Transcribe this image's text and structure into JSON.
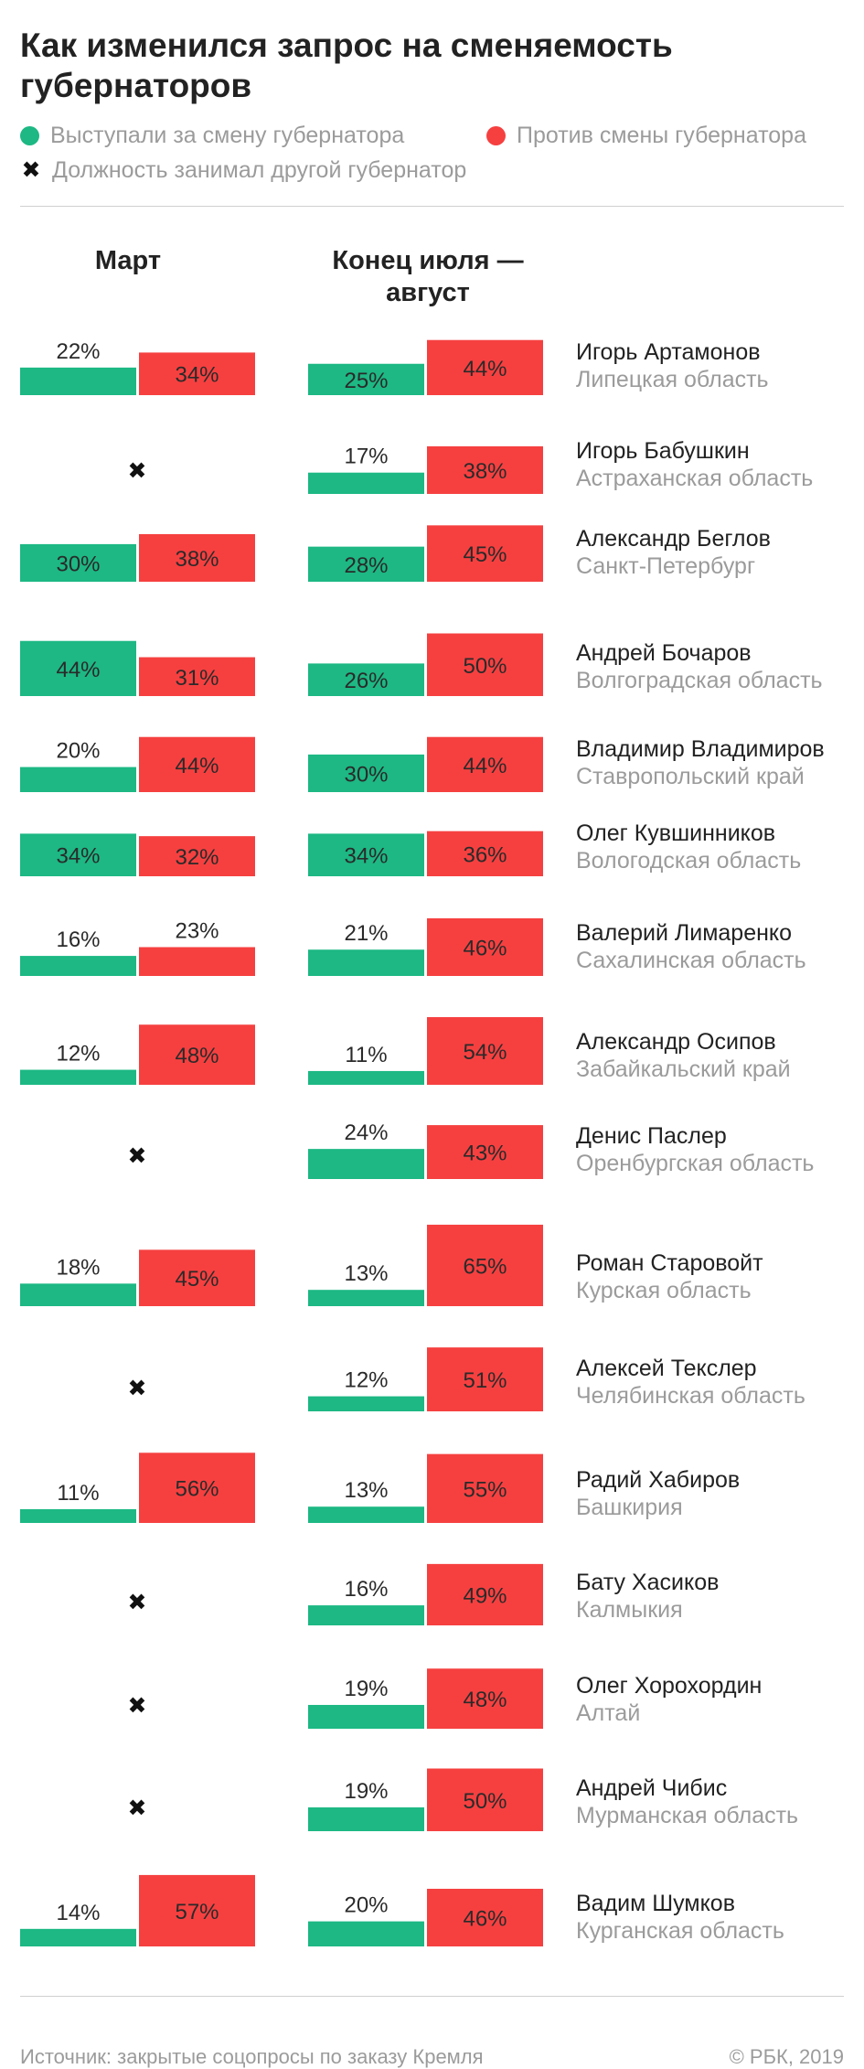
{
  "title": "Как изменился запрос на сменяемость губернаторов",
  "legend": [
    {
      "label": "Выступали за смену губернатора",
      "color": "#1db884",
      "marker": "dot"
    },
    {
      "label": "Против смены губернатора",
      "color": "#f64040",
      "marker": "dot"
    },
    {
      "label": "Должность занимал другой губернатор",
      "color": "#111111",
      "marker": "cross"
    }
  ],
  "columns": [
    "Март",
    "Конец июля —\nавгуст"
  ],
  "chart_data": {
    "type": "bar",
    "series": [
      {
        "name": "Выступали за смену губернатора",
        "color": "#1db884"
      },
      {
        "name": "Против смены губернатора",
        "color": "#f64040"
      }
    ],
    "periods": [
      "Март",
      "Конец июля — август"
    ],
    "rows": [
      {
        "name": "Игорь Артамонов",
        "region": "Липецкая область",
        "march": [
          22,
          34
        ],
        "summer": [
          25,
          44
        ]
      },
      {
        "name": "Игорь Бабушкин",
        "region": "Астраханская область",
        "march": null,
        "summer": [
          17,
          38
        ]
      },
      {
        "name": "Александр Беглов",
        "region": "Санкт-Петербург",
        "march": [
          30,
          38
        ],
        "summer": [
          28,
          45
        ]
      },
      {
        "name": "Андрей Бочаров",
        "region": "Волгоградская область",
        "march": [
          44,
          31
        ],
        "summer": [
          26,
          50
        ]
      },
      {
        "name": "Владимир Владимиров",
        "region": "Ставропольский край",
        "march": [
          20,
          44
        ],
        "summer": [
          30,
          44
        ]
      },
      {
        "name": "Олег Кувшинников",
        "region": "Вологодская область",
        "march": [
          34,
          32
        ],
        "summer": [
          34,
          36
        ]
      },
      {
        "name": "Валерий Лимаренко",
        "region": "Сахалинская область",
        "march": [
          16,
          23
        ],
        "summer": [
          21,
          46
        ]
      },
      {
        "name": "Александр Осипов",
        "region": "Забайкальский край",
        "march": [
          12,
          48
        ],
        "summer": [
          11,
          54
        ]
      },
      {
        "name": "Денис Паслер",
        "region": "Оренбургская область",
        "march": null,
        "summer": [
          24,
          43
        ]
      },
      {
        "name": "Роман Старовойт",
        "region": "Курская область",
        "march": [
          18,
          45
        ],
        "summer": [
          13,
          65
        ]
      },
      {
        "name": "Алексей Текслер",
        "region": "Челябинская область",
        "march": null,
        "summer": [
          12,
          51
        ]
      },
      {
        "name": "Радий Хабиров",
        "region": "Башкирия",
        "march": [
          11,
          56
        ],
        "summer": [
          13,
          55
        ]
      },
      {
        "name": "Бату Хасиков",
        "region": "Калмыкия",
        "march": null,
        "summer": [
          16,
          49
        ]
      },
      {
        "name": "Олег Хорохордин",
        "region": "Алтай",
        "march": null,
        "summer": [
          19,
          48
        ]
      },
      {
        "name": "Андрей Чибис",
        "region": "Мурманская область",
        "march": null,
        "summer": [
          19,
          50
        ]
      },
      {
        "name": "Вадим Шумков",
        "region": "Курганская область",
        "march": [
          14,
          57
        ],
        "summer": [
          20,
          46
        ]
      }
    ],
    "value_suffix": "%",
    "cross_symbol": "✖"
  },
  "footer": {
    "source": "Источник: закрытые соцопросы по заказу Кремля",
    "copyright": "© РБК, 2019"
  }
}
